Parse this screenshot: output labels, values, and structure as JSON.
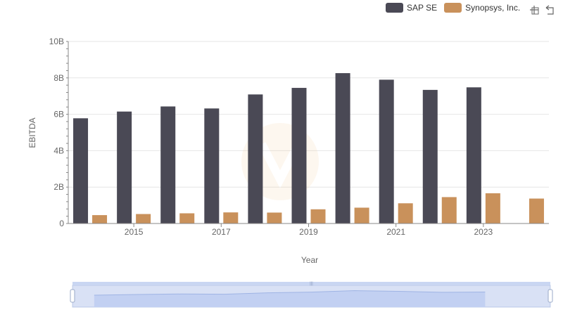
{
  "legend": {
    "items": [
      {
        "label": "SAP SE",
        "color": "#4a4955"
      },
      {
        "label": "Synopsys, Inc.",
        "color": "#c9915b"
      }
    ]
  },
  "toolbox": {
    "icons": [
      "zoom-icon",
      "restore-icon"
    ]
  },
  "chart_data": {
    "type": "bar",
    "categories": [
      "2014",
      "2015",
      "2016",
      "2017",
      "2018",
      "2019",
      "2020",
      "2021",
      "2022",
      "2023",
      "2024"
    ],
    "x_tick_labels": [
      "2015",
      "2017",
      "2019",
      "2021",
      "2023"
    ],
    "xlabel": "Year",
    "ylabel": "EBITDA",
    "ylim": [
      0,
      10000000000
    ],
    "y_tick_labels": [
      "0",
      "2B",
      "4B",
      "6B",
      "8B",
      "10B"
    ],
    "y_ticks": [
      0,
      2000000000,
      4000000000,
      6000000000,
      8000000000,
      10000000000
    ],
    "grid": true,
    "legend_position": "top-right",
    "series": [
      {
        "name": "SAP SE",
        "color": "#4a4955",
        "values": [
          5780000000,
          6150000000,
          6430000000,
          6320000000,
          7090000000,
          7450000000,
          8260000000,
          7900000000,
          7340000000,
          7480000000,
          null
        ]
      },
      {
        "name": "Synopsys, Inc.",
        "color": "#c9915b",
        "values": [
          460000000,
          520000000,
          560000000,
          610000000,
          600000000,
          780000000,
          870000000,
          1110000000,
          1450000000,
          1660000000,
          1370000000
        ]
      }
    ],
    "data_zoom": {
      "start_percent": 0,
      "end_percent": 100
    }
  }
}
